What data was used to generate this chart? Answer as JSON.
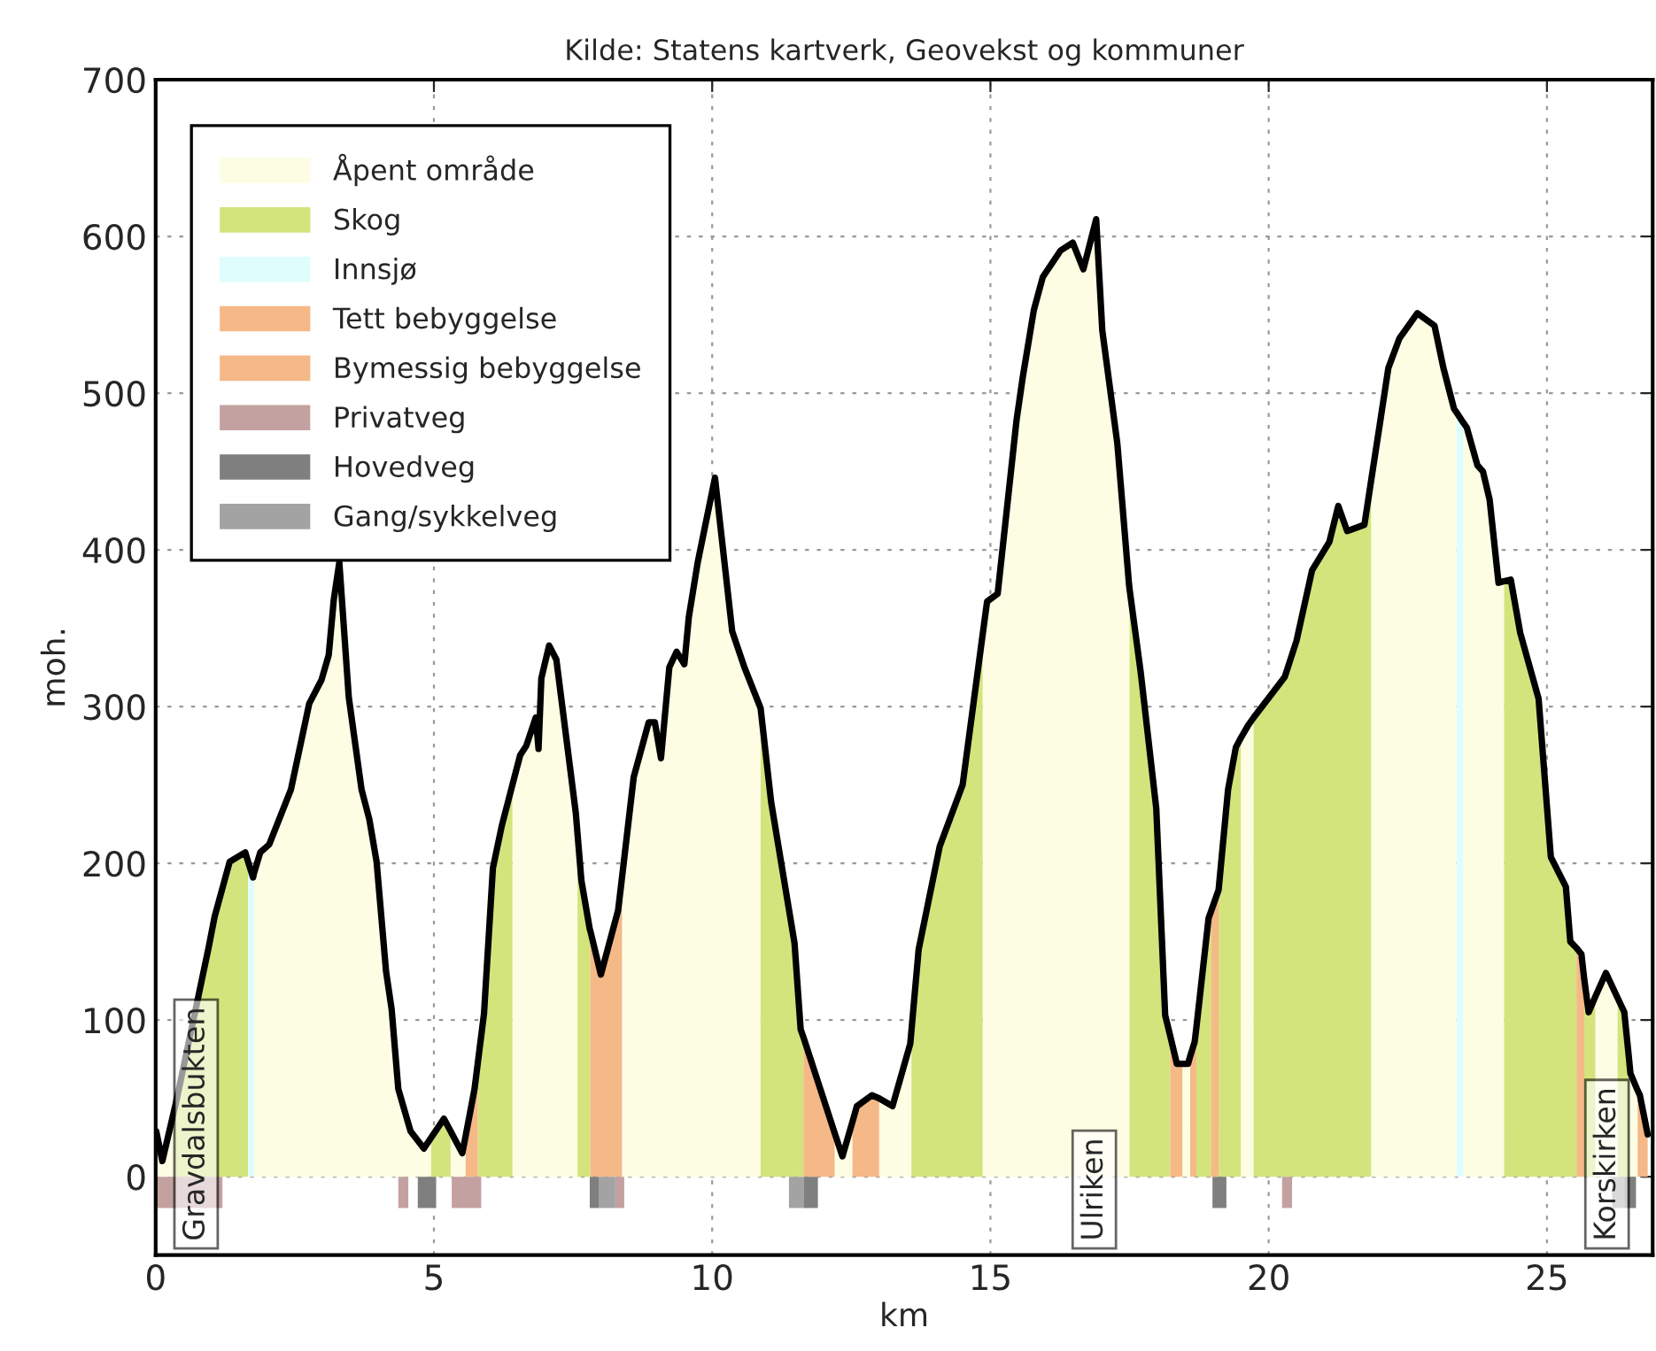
{
  "chart_data": {
    "type": "line",
    "title": "Kilde: Statens kartverk, Geovekst og kommuner",
    "xlabel": "km",
    "ylabel": "moh.",
    "xlim": [
      0,
      26.9
    ],
    "ylim": [
      -50,
      700
    ],
    "xticks": [
      0,
      5,
      10,
      15,
      20,
      25
    ],
    "yticks": [
      0,
      100,
      200,
      300,
      400,
      500,
      600,
      700
    ],
    "grid": true,
    "legend": "top left",
    "series": [
      {
        "color": "#000000",
        "x": [
          0.01,
          0.12,
          0.35,
          0.4,
          0.95,
          1.06,
          1.33,
          1.61,
          1.66,
          1.75,
          1.77,
          1.88,
          2.04,
          2.43,
          2.76,
          2.98,
          3.11,
          3.2,
          3.3,
          3.47,
          3.7,
          3.84,
          3.97,
          4.14,
          4.24,
          4.36,
          4.58,
          4.82,
          4.95,
          5.18,
          5.3,
          5.51,
          5.57,
          5.73,
          5.79,
          5.9,
          6.06,
          6.22,
          6.41,
          6.55,
          6.66,
          6.83,
          6.88,
          6.93,
          7.07,
          7.2,
          7.55,
          7.58,
          7.65,
          7.8,
          7.81,
          8.0,
          8.31,
          8.38,
          8.59,
          8.86,
          8.97,
          9.08,
          9.23,
          9.36,
          9.5,
          9.58,
          9.74,
          10.05,
          10.36,
          10.58,
          10.87,
          11.06,
          11.27,
          11.48,
          11.59,
          11.64,
          12.2,
          12.34,
          12.52,
          12.6,
          12.87,
          13.0,
          13.24,
          13.56,
          13.58,
          13.71,
          14.09,
          14.5,
          14.86,
          14.94,
          15.13,
          15.47,
          15.58,
          15.78,
          15.94,
          16.26,
          16.48,
          16.67,
          16.9,
          17.01,
          17.28,
          17.49,
          17.5,
          17.7,
          17.98,
          18.14,
          18.23,
          18.35,
          18.45,
          18.55,
          18.59,
          18.67,
          18.7,
          18.92,
          18.97,
          19.1,
          19.27,
          19.41,
          19.5,
          19.63,
          19.73,
          20.29,
          20.5,
          20.78,
          21.09,
          21.25,
          21.41,
          21.72,
          21.84,
          22.0,
          22.15,
          22.35,
          22.67,
          22.98,
          23.14,
          23.33,
          23.37,
          23.5,
          23.56,
          23.75,
          23.85,
          23.97,
          24.13,
          24.23,
          24.35,
          24.52,
          24.85,
          25.07,
          25.34,
          25.42,
          25.53,
          25.62,
          25.67,
          25.75,
          25.87,
          26.06,
          26.27,
          26.39,
          26.47,
          26.5,
          26.63,
          26.67,
          26.81
        ],
        "values": [
          29,
          10,
          45,
          53,
          146,
          166,
          201,
          207,
          201,
          191,
          194,
          207,
          212,
          247,
          302,
          317,
          333,
          368,
          392,
          306,
          247,
          228,
          201,
          131,
          107,
          56,
          29,
          18,
          25,
          37,
          29,
          15,
          26,
          56,
          73,
          104,
          197,
          224,
          250,
          269,
          275,
          293,
          273,
          318,
          339,
          330,
          232,
          219,
          189,
          158,
          157,
          129,
          170,
          191,
          255,
          290,
          290,
          267,
          325,
          335,
          327,
          357,
          392,
          446,
          348,
          325,
          299,
          239,
          194,
          149,
          94,
          89,
          28,
          13,
          35,
          45,
          52,
          50,
          45,
          85,
          93,
          145,
          211,
          250,
          346,
          367,
          372,
          483,
          510,
          553,
          574,
          591,
          596,
          579,
          611,
          540,
          468,
          378,
          375,
          322,
          235,
          103,
          90,
          72,
          72,
          72,
          77,
          86,
          95,
          165,
          170,
          183,
          247,
          274,
          280,
          288,
          293,
          319,
          342,
          387,
          405,
          428,
          412,
          416,
          444,
          481,
          516,
          535,
          551,
          543,
          516,
          490,
          488,
          481,
          478,
          454,
          450,
          432,
          379,
          380,
          381,
          347,
          305,
          204,
          185,
          150,
          146,
          142,
          126,
          105,
          115,
          130,
          114,
          105,
          77,
          66,
          55,
          52,
          27
        ]
      },
      {
        "type": "area",
        "name": "Åpent område",
        "color": "#fdfde4",
        "x": [
          0.01,
          0.01,
          0.12,
          0.35,
          0.35,
          1.77,
          1.77,
          1.88,
          2.04,
          2.43,
          2.76,
          2.98,
          3.11,
          3.2,
          3.3,
          3.47,
          3.7,
          3.84,
          3.97,
          4.14,
          4.24,
          4.36,
          4.58,
          4.82,
          4.95,
          4.95,
          5.3,
          5.3,
          5.51,
          5.57,
          5.57,
          6.41,
          6.41,
          6.55,
          6.66,
          6.83,
          6.88,
          6.93,
          7.07,
          7.2,
          7.55,
          7.58,
          7.58,
          8.38,
          8.38,
          8.59,
          8.86,
          8.97,
          9.08,
          9.23,
          9.36,
          9.5,
          9.58,
          9.74,
          10.05,
          10.36,
          10.58,
          10.87,
          10.87,
          12.2,
          12.2,
          12.34,
          12.52,
          12.52,
          13.0,
          13.0,
          13.24,
          13.56,
          13.58,
          13.58,
          14.86,
          14.86,
          14.94,
          15.13,
          15.47,
          15.58,
          15.78,
          15.94,
          16.26,
          16.48,
          16.67,
          16.9,
          17.01,
          17.28,
          17.49,
          17.5,
          17.5,
          18.45,
          18.45,
          18.55,
          18.59,
          18.59,
          19.5,
          19.5,
          19.63,
          19.73,
          19.73,
          21.84,
          21.84,
          22.0,
          22.15,
          22.35,
          22.67,
          22.98,
          23.14,
          23.33,
          23.37,
          23.37,
          23.5,
          23.5,
          23.56,
          23.75,
          23.85,
          23.97,
          24.13,
          24.23,
          24.23,
          25.87,
          25.87,
          26.06,
          26.27,
          26.27,
          26.47,
          26.47,
          26.5,
          26.63,
          26.63
        ],
        "values": [
          0,
          29,
          10,
          45,
          0,
          0,
          194,
          207,
          212,
          247,
          302,
          317,
          333,
          368,
          392,
          306,
          247,
          228,
          201,
          131,
          107,
          56,
          29,
          18,
          25,
          0,
          0,
          29,
          15,
          26,
          0,
          0,
          250,
          269,
          275,
          293,
          273,
          318,
          339,
          330,
          232,
          219,
          0,
          0,
          191,
          255,
          290,
          290,
          267,
          325,
          335,
          327,
          357,
          392,
          446,
          348,
          325,
          299,
          0,
          0,
          28,
          13,
          35,
          0,
          0,
          50,
          45,
          85,
          93,
          0,
          0,
          346,
          367,
          372,
          483,
          510,
          553,
          574,
          591,
          596,
          579,
          611,
          540,
          468,
          378,
          375,
          0,
          0,
          72,
          72,
          77,
          0,
          0,
          280,
          288,
          293,
          0,
          0,
          444,
          481,
          516,
          535,
          551,
          543,
          516,
          490,
          488,
          0,
          0,
          481,
          478,
          454,
          450,
          432,
          379,
          380,
          0,
          0,
          115,
          130,
          114,
          0,
          0,
          77,
          66,
          55,
          0
        ]
      },
      {
        "type": "area",
        "name": "Skog",
        "color": "#d4e47d",
        "x": [
          0.35,
          0.35,
          0.4,
          0.95,
          1.06,
          1.33,
          1.61,
          1.66,
          1.66,
          4.95,
          4.95,
          5.18,
          5.3,
          5.3,
          5.79,
          5.79,
          5.9,
          6.06,
          6.22,
          6.41,
          6.41,
          7.58,
          7.58,
          7.65,
          7.8,
          7.81,
          7.81,
          10.87,
          10.87,
          11.06,
          11.27,
          11.48,
          11.59,
          11.64,
          11.64,
          13.58,
          13.58,
          13.71,
          14.09,
          14.5,
          14.86,
          14.86,
          17.5,
          17.5,
          17.7,
          17.98,
          18.14,
          18.23,
          18.23,
          18.7,
          18.7,
          18.92,
          18.97,
          18.97,
          19.1,
          19.1,
          19.27,
          19.41,
          19.5,
          19.5,
          19.73,
          19.73,
          20.29,
          20.5,
          20.78,
          21.09,
          21.25,
          21.41,
          21.72,
          21.84,
          21.84,
          24.23,
          24.23,
          24.35,
          24.52,
          24.85,
          25.07,
          25.34,
          25.42,
          25.53,
          25.53,
          25.67,
          25.67,
          25.75,
          25.87,
          25.87,
          26.27,
          26.27,
          26.39,
          26.47,
          26.47
        ],
        "values": [
          0,
          45,
          53,
          146,
          166,
          201,
          207,
          201,
          0,
          0,
          25,
          37,
          29,
          0,
          0,
          73,
          104,
          197,
          224,
          250,
          0,
          0,
          219,
          189,
          158,
          157,
          0,
          0,
          299,
          239,
          194,
          149,
          94,
          89,
          0,
          0,
          93,
          145,
          211,
          250,
          346,
          0,
          0,
          375,
          322,
          235,
          103,
          90,
          0,
          0,
          95,
          165,
          170,
          0,
          0,
          183,
          247,
          274,
          280,
          0,
          0,
          293,
          319,
          342,
          387,
          405,
          428,
          412,
          416,
          444,
          0,
          0,
          380,
          381,
          347,
          305,
          204,
          185,
          150,
          146,
          0,
          0,
          126,
          105,
          115,
          0,
          0,
          114,
          105,
          77,
          0
        ]
      },
      {
        "type": "area",
        "name": "Innsjø",
        "color": "#e0fdfd",
        "x": [
          1.66,
          1.66,
          1.75,
          1.77,
          1.77,
          23.37,
          23.37,
          23.5,
          23.5
        ],
        "values": [
          0,
          201,
          191,
          194,
          0,
          0,
          488,
          481,
          0
        ]
      },
      {
        "type": "area",
        "name": "Tett bebyggelse",
        "color": "#f5b887",
        "x": [
          5.57,
          5.57,
          5.73,
          5.79,
          5.79,
          11.64,
          11.64,
          12.2,
          12.2,
          12.52,
          12.52,
          12.6,
          12.87,
          13.0,
          13.0,
          18.23,
          18.23,
          18.35,
          18.45,
          18.45,
          18.59,
          18.59,
          18.67,
          18.7,
          18.7,
          18.97,
          18.97,
          19.1,
          19.1,
          25.53,
          25.53,
          25.62,
          25.67,
          25.67,
          26.63,
          26.63,
          26.67,
          26.81,
          26.81
        ],
        "values": [
          0,
          26,
          56,
          73,
          0,
          0,
          89,
          28,
          0,
          0,
          35,
          45,
          52,
          50,
          0,
          0,
          90,
          72,
          72,
          0,
          0,
          77,
          86,
          95,
          0,
          0,
          170,
          183,
          0,
          0,
          146,
          142,
          126,
          0,
          0,
          55,
          52,
          27,
          0
        ]
      },
      {
        "type": "area",
        "name": "Bymessig bebyggelse",
        "color": "#f5b887",
        "x": [
          7.81,
          7.81,
          8.0,
          8.31,
          8.38,
          8.38
        ],
        "values": [
          0,
          157,
          129,
          170,
          191,
          0
        ]
      },
      {
        "type": "area",
        "name": "Privatveg",
        "color": "#c4a1a1",
        "x": [
          0.0,
          0.0,
          1.2,
          1.2,
          4.36,
          4.36,
          4.54,
          4.54,
          5.32,
          5.32,
          5.85,
          5.85,
          8.26,
          8.26,
          8.42,
          8.42,
          20.24,
          20.24,
          20.42,
          20.42
        ],
        "values": [
          0,
          -20,
          -20,
          0,
          0,
          -20,
          -20,
          0,
          0,
          -20,
          -20,
          0,
          0,
          -20,
          -20,
          0,
          0,
          -20,
          -20,
          0
        ]
      },
      {
        "type": "area",
        "name": "Hovedveg",
        "color": "#7f7f7f",
        "x": [
          4.71,
          4.71,
          5.04,
          5.04,
          7.8,
          7.8,
          7.96,
          7.96,
          11.64,
          11.64,
          11.9,
          11.9,
          18.99,
          18.99,
          19.24,
          19.24,
          26.39,
          26.39,
          26.6,
          26.6
        ],
        "values": [
          0,
          -20,
          -20,
          0,
          0,
          -20,
          -20,
          0,
          0,
          -20,
          -20,
          0,
          0,
          -20,
          -20,
          0,
          0,
          -20,
          -20,
          0
        ]
      },
      {
        "type": "area",
        "name": "Gang/sykkelveg",
        "color": "#a3a3a3",
        "x": [
          7.96,
          7.96,
          8.26,
          8.26,
          11.38,
          11.38,
          11.64,
          11.64,
          26.17,
          26.17,
          26.39,
          26.39
        ],
        "values": [
          0,
          -20,
          -20,
          0,
          0,
          -20,
          -20,
          0,
          0,
          -20,
          -20,
          0
        ]
      }
    ],
    "annotations": [
      "Gravdalsbukten",
      "Ulriken",
      "Korskirken"
    ]
  }
}
